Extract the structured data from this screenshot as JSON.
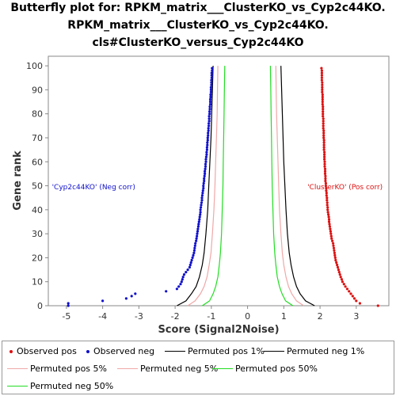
{
  "titles": [
    "Butterfly plot for: RPKM_matrix___ClusterKO_vs_Cyp2c44KO.",
    "RPKM_matrix___ClusterKO_vs_Cyp2c44KO.",
    "cls#ClusterKO_versus_Cyp2c44KO"
  ],
  "chart_data": {
    "type": "scatter",
    "title": "Butterfly plot for: RPKM_matrix___ClusterKO_vs_Cyp2c44KO. RPKM_matrix___ClusterKO_vs_Cyp2c44KO. cls#ClusterKO_versus_Cyp2c44KO",
    "xlabel": "Score (Signal2Noise)",
    "ylabel": "Gene rank",
    "xlim": [
      -5.5,
      3.9
    ],
    "ylim": [
      0,
      104
    ],
    "xticks": [
      -5,
      -4,
      -3,
      -2,
      -1,
      0,
      1,
      2,
      3
    ],
    "yticks": [
      0,
      10,
      20,
      30,
      40,
      50,
      60,
      70,
      80,
      90,
      100
    ],
    "grid": false,
    "legend_position": "bottom",
    "annotations": [
      {
        "text": "'Cyp2c44KO' (Neg corr)",
        "x": -5.4,
        "y": 49.5,
        "color": "#1010cc"
      },
      {
        "text": "'ClusterKO' (Pos corr)",
        "x": 1.65,
        "y": 49.5,
        "color": "#dd1111"
      }
    ],
    "series": [
      {
        "name": "Observed pos",
        "kind": "points",
        "color": "#dd1111",
        "points": [
          [
            3.6,
            0
          ],
          [
            3.1,
            1
          ],
          [
            3.0,
            2
          ],
          [
            2.95,
            3
          ],
          [
            2.9,
            4
          ],
          [
            2.85,
            5
          ],
          [
            2.8,
            6
          ],
          [
            2.75,
            7
          ],
          [
            2.7,
            8
          ],
          [
            2.66,
            9
          ],
          [
            2.62,
            10
          ],
          [
            2.6,
            11
          ],
          [
            2.57,
            12
          ],
          [
            2.55,
            13
          ],
          [
            2.53,
            14
          ],
          [
            2.51,
            15
          ],
          [
            2.49,
            16
          ],
          [
            2.47,
            17
          ],
          [
            2.45,
            18
          ],
          [
            2.43,
            19
          ],
          [
            2.42,
            20
          ],
          [
            2.41,
            21
          ],
          [
            2.4,
            22
          ],
          [
            2.39,
            23
          ],
          [
            2.38,
            24
          ],
          [
            2.37,
            25
          ],
          [
            2.36,
            26
          ],
          [
            2.34,
            27
          ],
          [
            2.32,
            28
          ],
          [
            2.31,
            29
          ],
          [
            2.3,
            30
          ],
          [
            2.29,
            31
          ],
          [
            2.28,
            32
          ],
          [
            2.27,
            33
          ],
          [
            2.26,
            34
          ],
          [
            2.25,
            35
          ],
          [
            2.25,
            36
          ],
          [
            2.24,
            37
          ],
          [
            2.23,
            38
          ],
          [
            2.22,
            39
          ],
          [
            2.21,
            40
          ],
          [
            2.21,
            41
          ],
          [
            2.2,
            42
          ],
          [
            2.2,
            43
          ],
          [
            2.19,
            44
          ],
          [
            2.19,
            45
          ],
          [
            2.18,
            46
          ],
          [
            2.18,
            47
          ],
          [
            2.17,
            48
          ],
          [
            2.17,
            49
          ],
          [
            2.16,
            50
          ],
          [
            2.16,
            51
          ],
          [
            2.15,
            52
          ],
          [
            2.15,
            53
          ],
          [
            2.15,
            54
          ],
          [
            2.14,
            55
          ],
          [
            2.14,
            56
          ],
          [
            2.14,
            57
          ],
          [
            2.13,
            58
          ],
          [
            2.13,
            59
          ],
          [
            2.13,
            60
          ],
          [
            2.12,
            61
          ],
          [
            2.12,
            62
          ],
          [
            2.12,
            63
          ],
          [
            2.12,
            64
          ],
          [
            2.11,
            65
          ],
          [
            2.11,
            66
          ],
          [
            2.11,
            67
          ],
          [
            2.11,
            68
          ],
          [
            2.11,
            69
          ],
          [
            2.1,
            70
          ],
          [
            2.1,
            71
          ],
          [
            2.1,
            72
          ],
          [
            2.1,
            73
          ],
          [
            2.09,
            74
          ],
          [
            2.09,
            75
          ],
          [
            2.09,
            76
          ],
          [
            2.09,
            77
          ],
          [
            2.09,
            78
          ],
          [
            2.08,
            79
          ],
          [
            2.08,
            80
          ],
          [
            2.08,
            81
          ],
          [
            2.08,
            82
          ],
          [
            2.08,
            83
          ],
          [
            2.07,
            84
          ],
          [
            2.07,
            85
          ],
          [
            2.07,
            86
          ],
          [
            2.07,
            87
          ],
          [
            2.07,
            88
          ],
          [
            2.06,
            89
          ],
          [
            2.06,
            90
          ],
          [
            2.06,
            91
          ],
          [
            2.06,
            92
          ],
          [
            2.06,
            93
          ],
          [
            2.05,
            94
          ],
          [
            2.05,
            95
          ],
          [
            2.05,
            96
          ],
          [
            2.05,
            97
          ],
          [
            2.05,
            98
          ],
          [
            2.04,
            99
          ]
        ]
      },
      {
        "name": "Observed neg",
        "kind": "points",
        "color": "#1010cc",
        "points": [
          [
            -4.95,
            0
          ],
          [
            -4.95,
            1
          ],
          [
            -4.0,
            2
          ],
          [
            -3.35,
            3
          ],
          [
            -3.2,
            4
          ],
          [
            -3.1,
            5
          ],
          [
            -2.25,
            6
          ],
          [
            -1.95,
            7
          ],
          [
            -1.9,
            8
          ],
          [
            -1.85,
            9
          ],
          [
            -1.82,
            10
          ],
          [
            -1.8,
            11
          ],
          [
            -1.78,
            12
          ],
          [
            -1.75,
            13
          ],
          [
            -1.7,
            14
          ],
          [
            -1.65,
            15
          ],
          [
            -1.6,
            16
          ],
          [
            -1.58,
            17
          ],
          [
            -1.56,
            18
          ],
          [
            -1.54,
            19
          ],
          [
            -1.52,
            20
          ],
          [
            -1.5,
            21
          ],
          [
            -1.48,
            22
          ],
          [
            -1.47,
            23
          ],
          [
            -1.46,
            24
          ],
          [
            -1.45,
            25
          ],
          [
            -1.44,
            26
          ],
          [
            -1.42,
            27
          ],
          [
            -1.41,
            28
          ],
          [
            -1.4,
            29
          ],
          [
            -1.39,
            30
          ],
          [
            -1.38,
            31
          ],
          [
            -1.37,
            32
          ],
          [
            -1.36,
            33
          ],
          [
            -1.35,
            34
          ],
          [
            -1.34,
            35
          ],
          [
            -1.33,
            36
          ],
          [
            -1.32,
            37
          ],
          [
            -1.31,
            38
          ],
          [
            -1.3,
            39
          ],
          [
            -1.3,
            40
          ],
          [
            -1.29,
            41
          ],
          [
            -1.28,
            42
          ],
          [
            -1.27,
            43
          ],
          [
            -1.26,
            44
          ],
          [
            -1.26,
            45
          ],
          [
            -1.25,
            46
          ],
          [
            -1.24,
            47
          ],
          [
            -1.23,
            48
          ],
          [
            -1.22,
            49
          ],
          [
            -1.22,
            50
          ],
          [
            -1.21,
            51
          ],
          [
            -1.2,
            52
          ],
          [
            -1.2,
            53
          ],
          [
            -1.19,
            54
          ],
          [
            -1.18,
            55
          ],
          [
            -1.18,
            56
          ],
          [
            -1.17,
            57
          ],
          [
            -1.16,
            58
          ],
          [
            -1.16,
            59
          ],
          [
            -1.15,
            60
          ],
          [
            -1.15,
            61
          ],
          [
            -1.14,
            62
          ],
          [
            -1.13,
            63
          ],
          [
            -1.13,
            64
          ],
          [
            -1.12,
            65
          ],
          [
            -1.12,
            66
          ],
          [
            -1.11,
            67
          ],
          [
            -1.11,
            68
          ],
          [
            -1.1,
            69
          ],
          [
            -1.1,
            70
          ],
          [
            -1.09,
            71
          ],
          [
            -1.09,
            72
          ],
          [
            -1.08,
            73
          ],
          [
            -1.08,
            74
          ],
          [
            -1.07,
            75
          ],
          [
            -1.07,
            76
          ],
          [
            -1.06,
            77
          ],
          [
            -1.06,
            78
          ],
          [
            -1.06,
            79
          ],
          [
            -1.05,
            80
          ],
          [
            -1.05,
            81
          ],
          [
            -1.04,
            82
          ],
          [
            -1.04,
            83
          ],
          [
            -1.03,
            84
          ],
          [
            -1.03,
            85
          ],
          [
            -1.03,
            86
          ],
          [
            -1.02,
            87
          ],
          [
            -1.02,
            88
          ],
          [
            -1.01,
            89
          ],
          [
            -1.01,
            90
          ],
          [
            -1.01,
            91
          ],
          [
            -1.0,
            92
          ],
          [
            -1.0,
            93
          ],
          [
            -1.0,
            94
          ],
          [
            -0.99,
            95
          ],
          [
            -0.99,
            96
          ],
          [
            -0.99,
            97
          ],
          [
            -0.98,
            98
          ],
          [
            -0.98,
            99
          ]
        ]
      },
      {
        "name": "Permuted pos 1%",
        "kind": "line",
        "color": "#000000",
        "points": [
          [
            1.85,
            0
          ],
          [
            1.6,
            2
          ],
          [
            1.45,
            5
          ],
          [
            1.35,
            8
          ],
          [
            1.27,
            12
          ],
          [
            1.2,
            17
          ],
          [
            1.15,
            22
          ],
          [
            1.1,
            30
          ],
          [
            1.06,
            40
          ],
          [
            1.03,
            50
          ],
          [
            1.0,
            60
          ],
          [
            0.98,
            70
          ],
          [
            0.96,
            80
          ],
          [
            0.94,
            90
          ],
          [
            0.92,
            100
          ]
        ]
      },
      {
        "name": "Permuted neg 1%",
        "kind": "line",
        "color": "#000000",
        "points": [
          [
            -1.95,
            0
          ],
          [
            -1.7,
            2
          ],
          [
            -1.55,
            5
          ],
          [
            -1.42,
            8
          ],
          [
            -1.33,
            12
          ],
          [
            -1.25,
            17
          ],
          [
            -1.2,
            22
          ],
          [
            -1.15,
            30
          ],
          [
            -1.1,
            40
          ],
          [
            -1.07,
            50
          ],
          [
            -1.04,
            60
          ],
          [
            -1.01,
            70
          ],
          [
            -0.99,
            80
          ],
          [
            -0.97,
            90
          ],
          [
            -0.95,
            100
          ]
        ]
      },
      {
        "name": "Permuted pos 5%",
        "kind": "line",
        "color": "#f0a8a8",
        "points": [
          [
            1.55,
            0
          ],
          [
            1.35,
            2
          ],
          [
            1.22,
            5
          ],
          [
            1.13,
            8
          ],
          [
            1.06,
            12
          ],
          [
            1.0,
            17
          ],
          [
            0.96,
            22
          ],
          [
            0.92,
            30
          ],
          [
            0.88,
            40
          ],
          [
            0.86,
            50
          ],
          [
            0.84,
            60
          ],
          [
            0.82,
            70
          ],
          [
            0.8,
            80
          ],
          [
            0.79,
            90
          ],
          [
            0.78,
            100
          ]
        ]
      },
      {
        "name": "Permuted neg 5%",
        "kind": "line",
        "color": "#f0a8a8",
        "points": [
          [
            -1.65,
            0
          ],
          [
            -1.45,
            2
          ],
          [
            -1.3,
            5
          ],
          [
            -1.2,
            8
          ],
          [
            -1.12,
            12
          ],
          [
            -1.06,
            17
          ],
          [
            -1.01,
            22
          ],
          [
            -0.97,
            30
          ],
          [
            -0.93,
            40
          ],
          [
            -0.9,
            50
          ],
          [
            -0.88,
            60
          ],
          [
            -0.86,
            70
          ],
          [
            -0.84,
            80
          ],
          [
            -0.83,
            90
          ],
          [
            -0.82,
            100
          ]
        ]
      },
      {
        "name": "Permuted pos 50%",
        "kind": "line",
        "color": "#22dd22",
        "points": [
          [
            1.25,
            0
          ],
          [
            1.05,
            2
          ],
          [
            0.95,
            5
          ],
          [
            0.88,
            8
          ],
          [
            0.82,
            12
          ],
          [
            0.78,
            17
          ],
          [
            0.75,
            22
          ],
          [
            0.72,
            30
          ],
          [
            0.7,
            40
          ],
          [
            0.68,
            50
          ],
          [
            0.67,
            60
          ],
          [
            0.66,
            70
          ],
          [
            0.65,
            80
          ],
          [
            0.64,
            90
          ],
          [
            0.63,
            100
          ]
        ]
      },
      {
        "name": "Permuted neg 50%",
        "kind": "line",
        "color": "#22dd22",
        "points": [
          [
            -1.25,
            0
          ],
          [
            -1.05,
            2
          ],
          [
            -0.95,
            5
          ],
          [
            -0.88,
            8
          ],
          [
            -0.82,
            12
          ],
          [
            -0.78,
            17
          ],
          [
            -0.75,
            22
          ],
          [
            -0.72,
            30
          ],
          [
            -0.7,
            40
          ],
          [
            -0.68,
            50
          ],
          [
            -0.67,
            60
          ],
          [
            -0.66,
            70
          ],
          [
            -0.65,
            80
          ],
          [
            -0.64,
            90
          ],
          [
            -0.63,
            100
          ]
        ]
      }
    ]
  }
}
